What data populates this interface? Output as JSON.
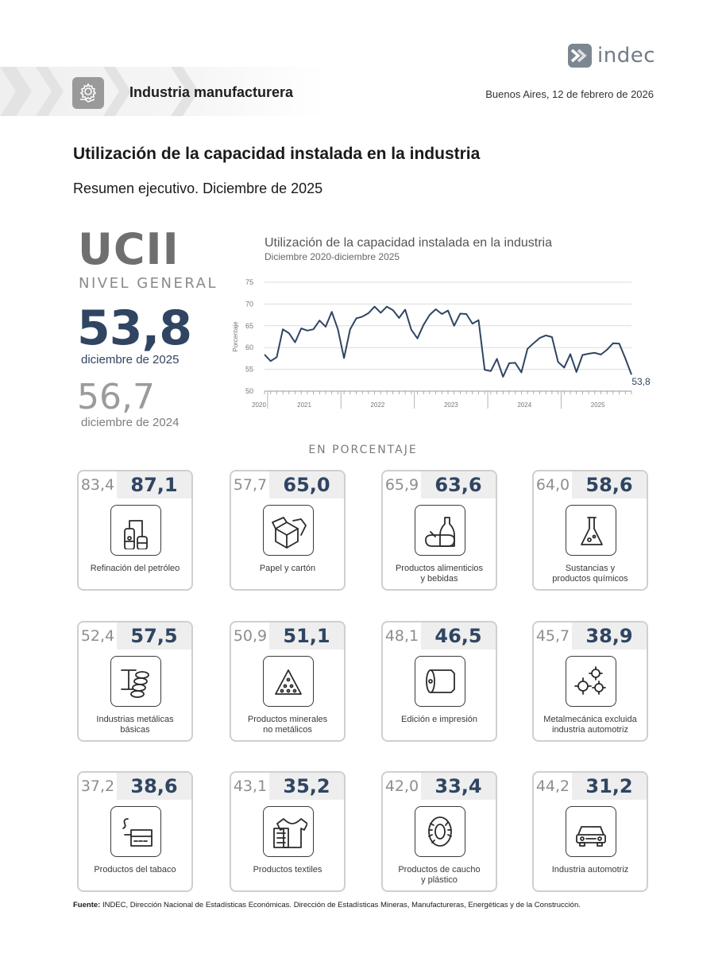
{
  "header": {
    "section": "Industria manufacturera",
    "date": "Buenos Aires, 12 de febrero de 2026",
    "logo_text": "indec"
  },
  "title": "Utilización de la capacidad instalada en la industria",
  "subtitle": "Resumen ejecutivo. Diciembre de 2025",
  "kpi": {
    "acronym": "UCII",
    "level_label": "NIVEL GENERAL",
    "current_value": "53,8",
    "current_label": "diciembre de 2025",
    "previous_value": "56,7",
    "previous_label": "diciembre de 2024"
  },
  "chart_data": {
    "type": "line",
    "title": "Utilización de la capacidad instalada en la industria",
    "subtitle": "Diciembre 2020-diciembre 2025",
    "ylabel": "Porcentaje",
    "ylim": [
      50,
      75
    ],
    "yticks": [
      "50",
      "55",
      "60",
      "65",
      "70",
      "75"
    ],
    "xticks": [
      "2020",
      "2021",
      "2022",
      "2023",
      "2024",
      "2025"
    ],
    "grid": true,
    "end_label": "53,8",
    "x": [
      "2020-12",
      "2021-01",
      "2021-02",
      "2021-03",
      "2021-04",
      "2021-05",
      "2021-06",
      "2021-07",
      "2021-08",
      "2021-09",
      "2021-10",
      "2021-11",
      "2021-12",
      "2022-01",
      "2022-02",
      "2022-03",
      "2022-04",
      "2022-05",
      "2022-06",
      "2022-07",
      "2022-08",
      "2022-09",
      "2022-10",
      "2022-11",
      "2022-12",
      "2023-01",
      "2023-02",
      "2023-03",
      "2023-04",
      "2023-05",
      "2023-06",
      "2023-07",
      "2023-08",
      "2023-09",
      "2023-10",
      "2023-11",
      "2023-12",
      "2024-01",
      "2024-02",
      "2024-03",
      "2024-04",
      "2024-05",
      "2024-06",
      "2024-07",
      "2024-08",
      "2024-09",
      "2024-10",
      "2024-11",
      "2024-12",
      "2025-01",
      "2025-02",
      "2025-03",
      "2025-04",
      "2025-05",
      "2025-06",
      "2025-07",
      "2025-08",
      "2025-09",
      "2025-10",
      "2025-11",
      "2025-12"
    ],
    "values": [
      58.4,
      56.9,
      57.8,
      64.2,
      63.3,
      61.2,
      64.4,
      63.9,
      64.2,
      66.2,
      64.8,
      68.2,
      64.2,
      57.6,
      64.2,
      66.7,
      67.1,
      67.9,
      69.4,
      68.0,
      69.4,
      68.6,
      66.8,
      68.7,
      64.1,
      62.1,
      65.2,
      67.5,
      68.8,
      67.7,
      68.5,
      65.0,
      67.8,
      67.7,
      65.5,
      66.3,
      54.9,
      54.6,
      57.4,
      53.3,
      56.4,
      56.5,
      54.3,
      59.7,
      61.0,
      62.2,
      62.8,
      62.4,
      56.7,
      55.4,
      58.5,
      54.4,
      58.3,
      58.6,
      58.8,
      58.4,
      59.5,
      61.0,
      60.9,
      57.5,
      53.8
    ]
  },
  "cards_heading": "EN PORCENTAJE",
  "cards": [
    {
      "prev": "83,4",
      "cur": "87,1",
      "label": "Refinación del petróleo",
      "icon": "oil-refinery-icon"
    },
    {
      "prev": "57,7",
      "cur": "65,0",
      "label": "Papel y cartón",
      "icon": "paper-box-icon"
    },
    {
      "prev": "65,9",
      "cur": "63,6",
      "label": "Productos alimenticios\ny bebidas",
      "icon": "food-beverage-icon"
    },
    {
      "prev": "64,0",
      "cur": "58,6",
      "label": "Sustancias y\nproductos químicos",
      "icon": "flask-icon"
    },
    {
      "prev": "52,4",
      "cur": "57,5",
      "label": "Industrias metálicas\nbásicas",
      "icon": "metal-beam-icon"
    },
    {
      "prev": "50,9",
      "cur": "51,1",
      "label": "Productos minerales\nno metálicos",
      "icon": "mineral-pyramid-icon"
    },
    {
      "prev": "48,1",
      "cur": "46,5",
      "label": "Edición e impresión",
      "icon": "paper-roll-icon"
    },
    {
      "prev": "45,7",
      "cur": "38,9",
      "label": "Metalmecánica excluida\nindustria automotriz",
      "icon": "gears-icon"
    },
    {
      "prev": "37,2",
      "cur": "38,6",
      "label": "Productos del tabaco",
      "icon": "tobacco-icon"
    },
    {
      "prev": "43,1",
      "cur": "35,2",
      "label": "Productos textiles",
      "icon": "textile-shirt-icon"
    },
    {
      "prev": "42,0",
      "cur": "33,4",
      "label": "Productos de caucho\ny plástico",
      "icon": "tire-icon"
    },
    {
      "prev": "44,2",
      "cur": "31,2",
      "label": "Industria automotriz",
      "icon": "car-icon"
    }
  ],
  "source": {
    "label": "Fuente:",
    "text": " INDEC, Dirección Nacional de Estadísticas Económicas. Dirección de Estadísticas Mineras, Manufactureras, Energéticas y de la Construcción."
  },
  "colors": {
    "accent": "#2f4562",
    "muted": "#8e8e8e",
    "card_border": "#cfcfcf",
    "line": "#2f4562"
  }
}
